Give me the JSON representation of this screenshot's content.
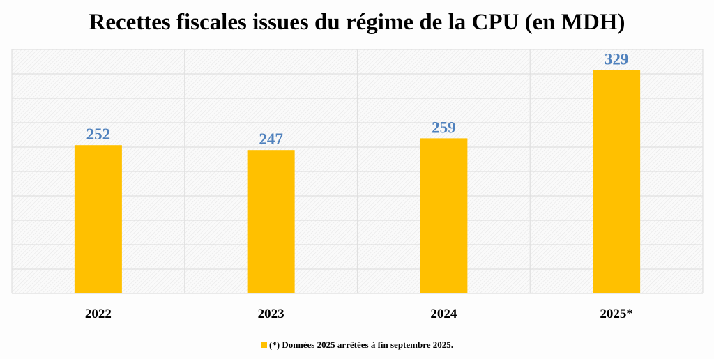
{
  "chart_data": {
    "type": "bar",
    "title": "Recettes fiscales issues du régime de la CPU (en MDH)",
    "categories": [
      "2022",
      "2023",
      "2024",
      "2025*"
    ],
    "values": [
      252,
      247,
      259,
      329
    ],
    "data_labels": [
      "252",
      "247",
      "259",
      "329"
    ],
    "ylim": [
      100,
      350
    ],
    "y_grid_step": 25,
    "y_axis_labels_shown": false,
    "grid": true,
    "bar_color": "#FFC000",
    "data_label_color": "#4F81BD",
    "legend": {
      "position": "bottom",
      "text": "(*) Données 2025 arrêtées à fin septembre 2025."
    }
  }
}
